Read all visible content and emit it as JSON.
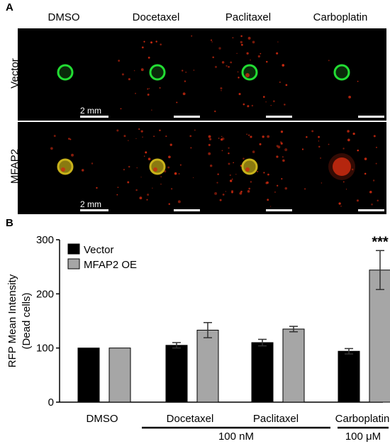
{
  "panel_a": {
    "letter": "A",
    "columns": [
      "DMSO",
      "Docetaxel",
      "Paclitaxel",
      "Carboplatin"
    ],
    "rows": [
      "Vector",
      "MFAP2"
    ],
    "scale_bar_label": "2 mm",
    "colors": {
      "green": "#22dd33",
      "red": "#cc2a10",
      "background": "#000000"
    }
  },
  "panel_b": {
    "letter": "B",
    "group_labels": {
      "nm": "100 nM",
      "um": "100 μM"
    }
  },
  "chart_data": {
    "type": "bar",
    "categories": [
      "DMSO",
      "Docetaxel",
      "Paclitaxel",
      "Carboplatin"
    ],
    "series": [
      {
        "name": "Vector",
        "color": "#000000",
        "values": [
          100,
          105,
          110,
          94
        ],
        "errors": [
          0,
          5,
          6,
          5
        ]
      },
      {
        "name": "MFAP2 OE",
        "color": "#a6a6a6",
        "values": [
          100,
          133,
          135,
          244
        ],
        "errors": [
          0,
          14,
          5,
          36
        ]
      }
    ],
    "ylabel_lines": [
      "RFP Mean Intensity",
      "(Dead cells)"
    ],
    "ylim": [
      0,
      300
    ],
    "yticks": [
      0,
      100,
      200,
      300
    ],
    "annotations": [
      {
        "category": "Carboplatin",
        "series": "MFAP2 OE",
        "text": "***"
      }
    ],
    "legend_position": "top-left",
    "grid": false
  }
}
